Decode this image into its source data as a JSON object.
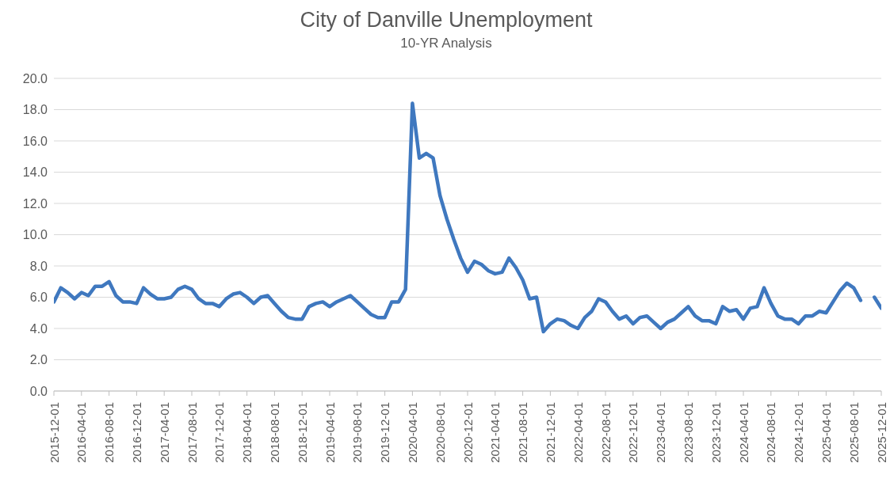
{
  "chart_data": {
    "type": "line",
    "title": "City of Danville Unemployment",
    "subtitle": "10-YR Analysis",
    "categories": [
      "2015-12-01",
      null,
      null,
      null,
      "2016-04-01",
      null,
      null,
      null,
      "2016-08-01",
      null,
      null,
      null,
      "2016-12-01",
      null,
      null,
      null,
      "2017-04-01",
      null,
      null,
      null,
      "2017-08-01",
      null,
      null,
      null,
      "2017-12-01",
      null,
      null,
      null,
      "2018-04-01",
      null,
      null,
      null,
      "2018-08-01",
      null,
      null,
      null,
      "2018-12-01",
      null,
      null,
      null,
      "2019-04-01",
      null,
      null,
      null,
      "2019-08-01",
      null,
      null,
      null,
      "2019-12-01",
      null,
      null,
      null,
      "2020-04-01",
      null,
      null,
      null,
      "2020-08-01",
      null,
      null,
      null,
      "2020-12-01",
      null,
      null,
      null,
      "2021-04-01",
      null,
      null,
      null,
      "2021-08-01",
      null,
      null,
      null,
      "2021-12-01",
      null,
      null,
      null,
      "2022-04-01",
      null,
      null,
      null,
      "2022-08-01",
      null,
      null,
      null,
      "2022-12-01",
      null,
      null,
      null,
      "2023-04-01",
      null,
      null,
      null,
      "2023-08-01",
      null,
      null,
      null,
      "2023-12-01",
      null,
      null,
      null,
      "2024-04-01",
      null,
      null,
      null,
      "2024-08-01",
      null,
      null,
      null,
      "2024-12-01",
      null,
      null,
      null,
      "2025-04-01",
      null,
      null,
      null,
      "2025-08-01",
      null,
      null,
      null,
      "2025-12-01"
    ],
    "series": [
      {
        "color": "#3f78bf",
        "values": [
          5.7,
          6.6,
          6.3,
          5.9,
          6.3,
          6.1,
          6.7,
          6.7,
          7.0,
          6.1,
          5.7,
          5.7,
          5.6,
          6.6,
          6.2,
          5.9,
          5.9,
          6.0,
          6.5,
          6.7,
          6.5,
          5.9,
          5.6,
          5.6,
          5.4,
          5.9,
          6.2,
          6.3,
          6.0,
          5.6,
          6.0,
          6.1,
          5.6,
          5.1,
          4.7,
          4.6,
          4.6,
          5.4,
          5.6,
          5.7,
          5.4,
          5.7,
          5.9,
          6.1,
          5.7,
          5.3,
          4.9,
          4.7,
          4.7,
          5.7,
          5.7,
          6.5,
          18.4,
          14.9,
          15.2,
          14.9,
          12.5,
          11.0,
          9.7,
          8.5,
          7.6,
          8.3,
          8.1,
          7.7,
          7.5,
          7.6,
          8.5,
          7.9,
          7.1,
          5.9,
          6.0,
          3.8,
          4.3,
          4.6,
          4.5,
          4.2,
          4.0,
          4.7,
          5.1,
          5.9,
          5.7,
          5.1,
          4.6,
          4.8,
          4.3,
          4.7,
          4.8,
          4.4,
          4.0,
          4.4,
          4.6,
          5.0,
          5.4,
          4.8,
          4.5,
          4.5,
          4.3,
          5.4,
          5.1,
          5.2,
          4.6,
          5.3,
          5.4,
          6.6,
          5.6,
          4.8,
          4.6,
          4.6,
          4.3,
          4.8,
          4.8,
          5.1,
          5.0,
          5.7,
          6.4,
          6.9,
          6.6,
          5.8,
          null,
          6.0,
          5.3
        ]
      }
    ],
    "ylim": [
      0,
      20
    ],
    "yticks": [
      {
        "value": 0,
        "label": "0.0"
      },
      {
        "value": 2,
        "label": "2.0"
      },
      {
        "value": 4,
        "label": "4.0"
      },
      {
        "value": 6,
        "label": "6.0"
      },
      {
        "value": 8,
        "label": "8.0"
      },
      {
        "value": 10,
        "label": "10.0"
      },
      {
        "value": 12,
        "label": "12.0"
      },
      {
        "value": 14,
        "label": "14.0"
      },
      {
        "value": 16,
        "label": "16.0"
      },
      {
        "value": 18,
        "label": "18.0"
      },
      {
        "value": 20,
        "label": "20.0"
      }
    ],
    "grid": "y",
    "marker": "none",
    "line_style": "solid"
  }
}
